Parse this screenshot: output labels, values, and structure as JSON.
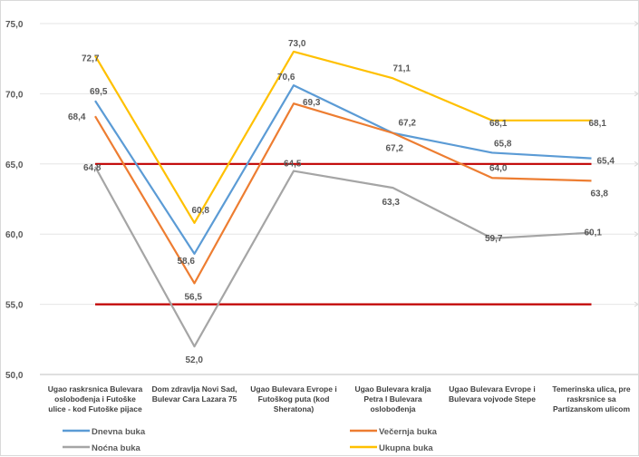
{
  "chart_data": {
    "type": "line",
    "categories": [
      [
        "Ugao raskrsnica Bulevara",
        "oslobođenja i Futoške",
        "ulice - kod Futoške pijace"
      ],
      [
        "Dom zdravlja Novi Sad,",
        "Bulevar Cara Lazara 75"
      ],
      [
        "Ugao Bulevara Evrope i",
        "Futoškog puta (kod",
        "Sheratona)"
      ],
      [
        "Ugao Bulevara kralja",
        "Petra I Bulevara",
        "oslobođenja"
      ],
      [
        "Ugao Bulevara Evrope i",
        "Bulevara vojvode Stepe"
      ],
      [
        "Temerinska ulica, pre",
        "raskrsnice sa",
        "Partizanskom ulicom"
      ]
    ],
    "series": [
      {
        "name": "Dnevna buka",
        "color": "#5b9bd5",
        "values": [
          69.5,
          58.6,
          70.6,
          67.2,
          65.8,
          65.4
        ],
        "labels": [
          "69,5",
          "58,6",
          "70,6",
          "67,2",
          "65,8",
          "65,4"
        ]
      },
      {
        "name": "Večernja buka",
        "color": "#ed7d31",
        "values": [
          68.4,
          56.5,
          69.3,
          67.2,
          64.0,
          63.8
        ],
        "labels": [
          "68,4",
          "56,5",
          "69,3",
          "67,2",
          "64,0",
          "63,8"
        ]
      },
      {
        "name": "Noćna buka",
        "color": "#a5a5a5",
        "values": [
          64.8,
          52.0,
          64.5,
          63.3,
          59.7,
          60.1
        ],
        "labels": [
          "64,8",
          "52,0",
          "64,5",
          "63,3",
          "59,7",
          "60,1"
        ]
      },
      {
        "name": "Ukupna buka",
        "color": "#ffc000",
        "values": [
          72.7,
          60.8,
          73.0,
          71.1,
          68.1,
          68.1
        ],
        "labels": [
          "72,7",
          "60,8",
          "73,0",
          "71,1",
          "68,1",
          "68,1"
        ]
      }
    ],
    "reference_lines": [
      {
        "value": 65.0,
        "color": "#c00000"
      },
      {
        "value": 55.0,
        "color": "#c00000"
      }
    ],
    "ylim": [
      50,
      75
    ],
    "yticks": [
      {
        "value": 50,
        "label": "50,0"
      },
      {
        "value": 55,
        "label": "55,0"
      },
      {
        "value": 60,
        "label": "60,0"
      },
      {
        "value": 65,
        "label": "65,0"
      },
      {
        "value": 70,
        "label": "70,0"
      },
      {
        "value": 75,
        "label": "75,0"
      }
    ],
    "grid": true,
    "legend_position": "bottom"
  }
}
